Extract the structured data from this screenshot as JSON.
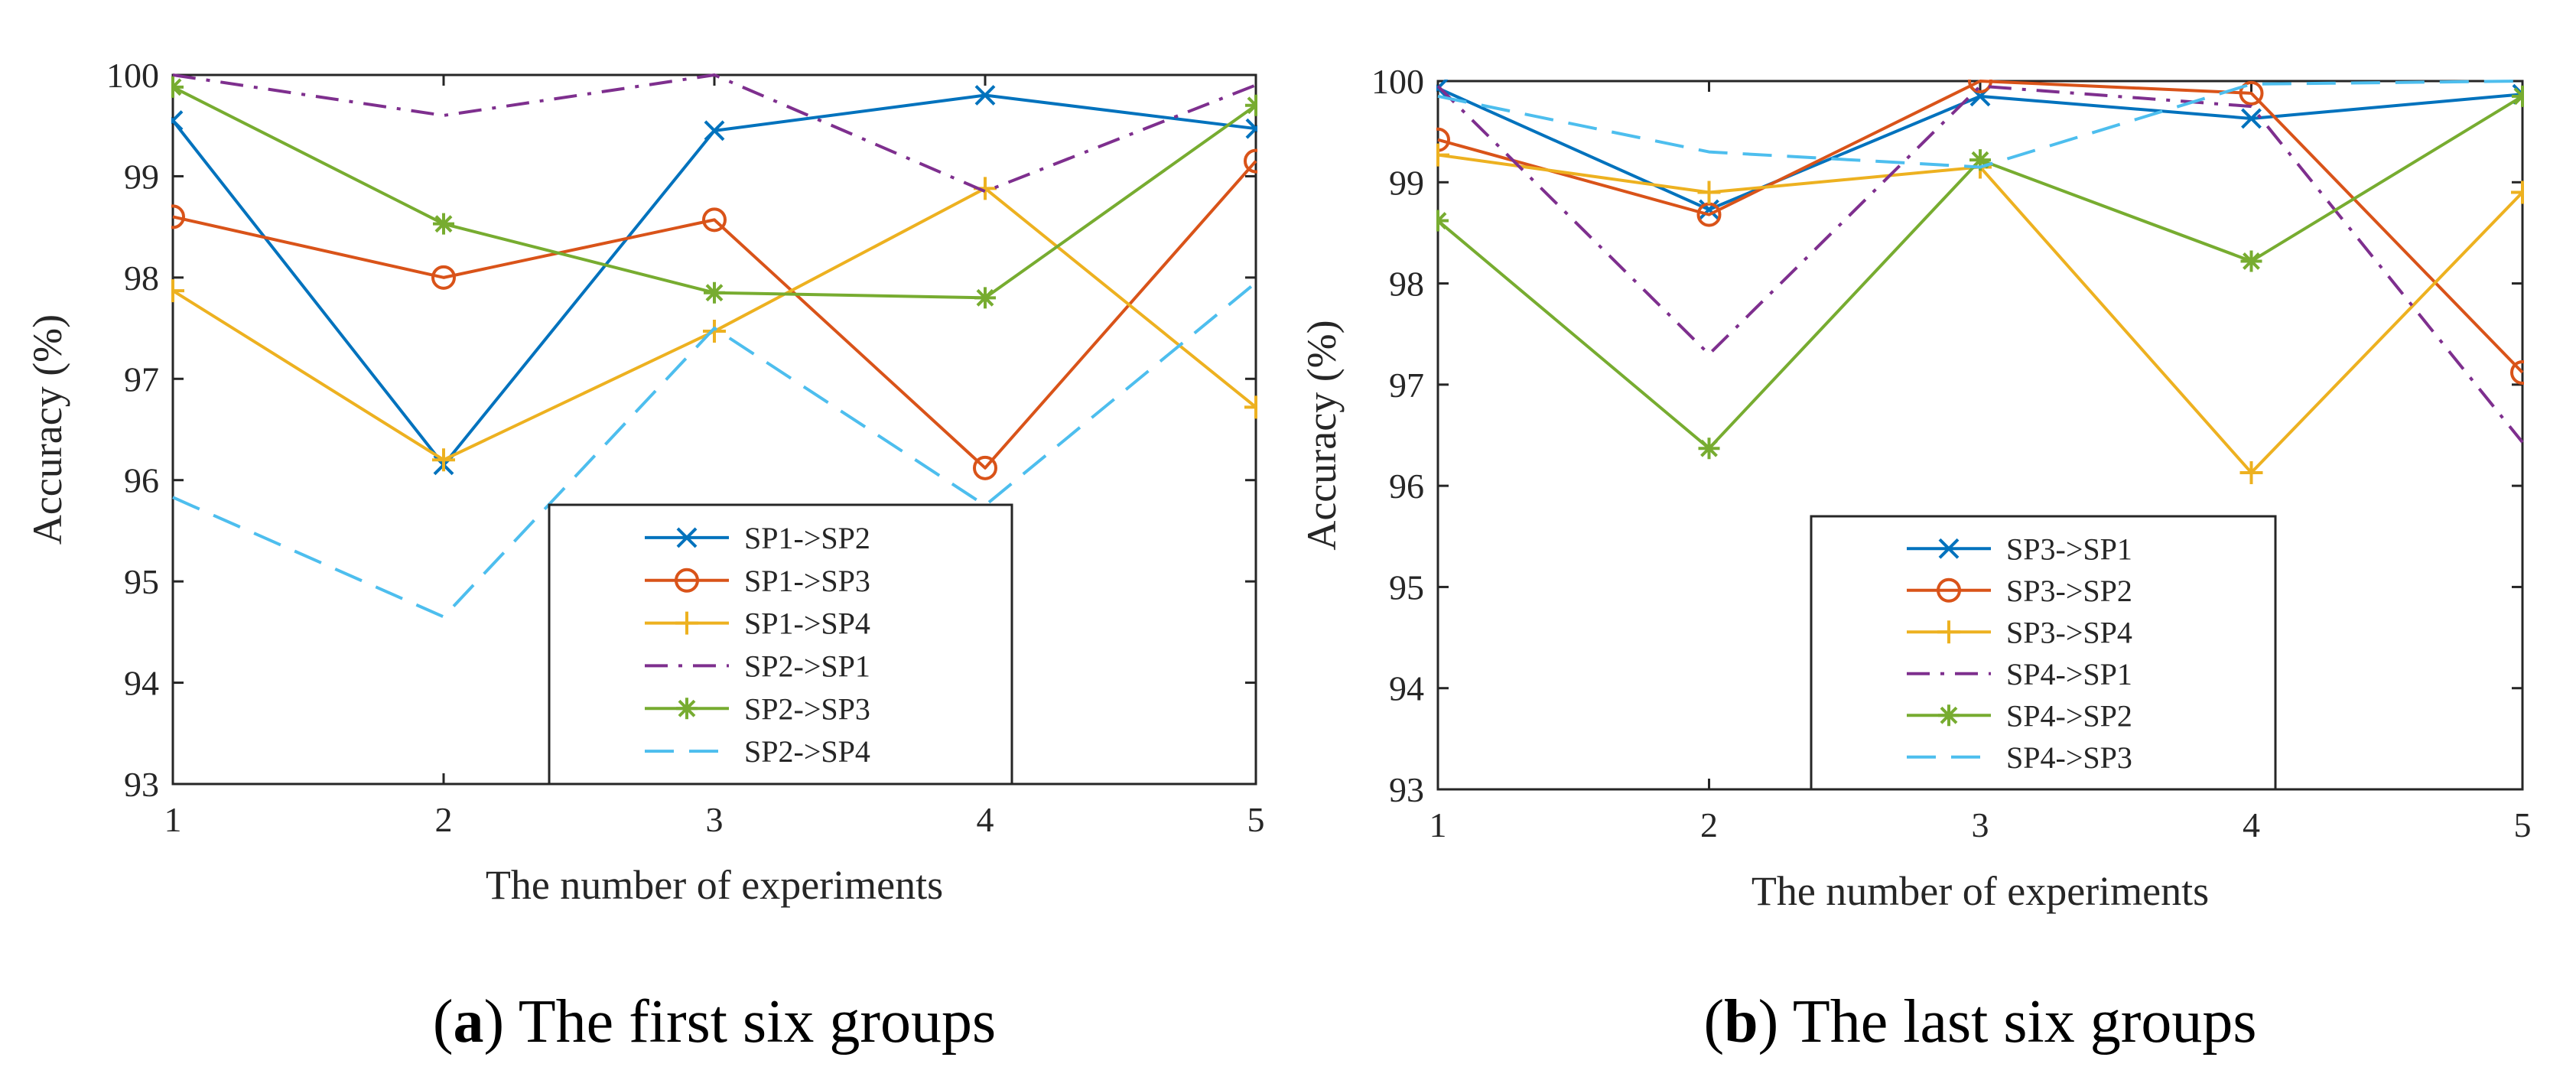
{
  "chart_data": [
    {
      "type": "line",
      "caption_letter": "a",
      "caption_text": "The first six groups",
      "xlabel": "The number of experiments",
      "ylabel": "Accuracy (%)",
      "xlim": [
        1,
        5
      ],
      "ylim": [
        93,
        100
      ],
      "x_ticks": [
        "1",
        "2",
        "3",
        "4",
        "5"
      ],
      "y_ticks": [
        "93",
        "94",
        "95",
        "96",
        "97",
        "98",
        "99",
        "100"
      ],
      "x": [
        1,
        2,
        3,
        4,
        5
      ],
      "legend_location": "bottom-center",
      "series": [
        {
          "name": "SP1->SP2",
          "values": [
            99.55,
            96.15,
            99.45,
            99.8,
            99.47
          ],
          "color": "#0072BD",
          "marker": "x",
          "dash": "solid"
        },
        {
          "name": "SP1->SP3",
          "values": [
            98.6,
            98.0,
            98.57,
            96.12,
            99.15
          ],
          "color": "#D95319",
          "marker": "o",
          "dash": "solid"
        },
        {
          "name": "SP1->SP4",
          "values": [
            97.87,
            96.2,
            97.47,
            98.88,
            96.72
          ],
          "color": "#EDB120",
          "marker": "+",
          "dash": "solid"
        },
        {
          "name": "SP2->SP1",
          "values": [
            100.0,
            99.6,
            100.0,
            98.85,
            99.9
          ],
          "color": "#7E2F8E",
          "marker": "none",
          "dash": "dashdot"
        },
        {
          "name": "SP2->SP3",
          "values": [
            99.88,
            98.53,
            97.85,
            97.8,
            99.7
          ],
          "color": "#77AC30",
          "marker": "*",
          "dash": "solid"
        },
        {
          "name": "SP2->SP4",
          "values": [
            95.83,
            94.65,
            97.5,
            95.75,
            97.95
          ],
          "color": "#4DBEEE",
          "marker": "none",
          "dash": "dashed"
        }
      ]
    },
    {
      "type": "line",
      "caption_letter": "b",
      "caption_text": "The last six groups",
      "xlabel": "The number of experiments",
      "ylabel": "Accuracy (%)",
      "xlim": [
        1,
        5
      ],
      "ylim": [
        93,
        100
      ],
      "x_ticks": [
        "1",
        "2",
        "3",
        "4",
        "5"
      ],
      "y_ticks": [
        "93",
        "94",
        "95",
        "96",
        "97",
        "98",
        "99",
        "100"
      ],
      "x": [
        1,
        2,
        3,
        4,
        5
      ],
      "legend_location": "bottom-center",
      "series": [
        {
          "name": "SP3->SP1",
          "values": [
            99.93,
            98.73,
            99.85,
            99.63,
            99.87
          ],
          "color": "#0072BD",
          "marker": "x",
          "dash": "solid"
        },
        {
          "name": "SP3->SP2",
          "values": [
            99.42,
            98.68,
            100.0,
            99.88,
            97.12
          ],
          "color": "#D95319",
          "marker": "o",
          "dash": "solid"
        },
        {
          "name": "SP3->SP4",
          "values": [
            99.27,
            98.9,
            99.15,
            96.13,
            98.9
          ],
          "color": "#EDB120",
          "marker": "+",
          "dash": "solid"
        },
        {
          "name": "SP4->SP1",
          "values": [
            99.95,
            97.3,
            99.95,
            99.75,
            96.43
          ],
          "color": "#7E2F8E",
          "marker": "none",
          "dash": "dashdot"
        },
        {
          "name": "SP4->SP2",
          "values": [
            98.62,
            96.37,
            99.22,
            98.22,
            99.85
          ],
          "color": "#77AC30",
          "marker": "*",
          "dash": "solid"
        },
        {
          "name": "SP4->SP3",
          "values": [
            99.85,
            99.3,
            99.15,
            99.97,
            100.0
          ],
          "color": "#4DBEEE",
          "marker": "none",
          "dash": "dashed"
        }
      ]
    }
  ]
}
